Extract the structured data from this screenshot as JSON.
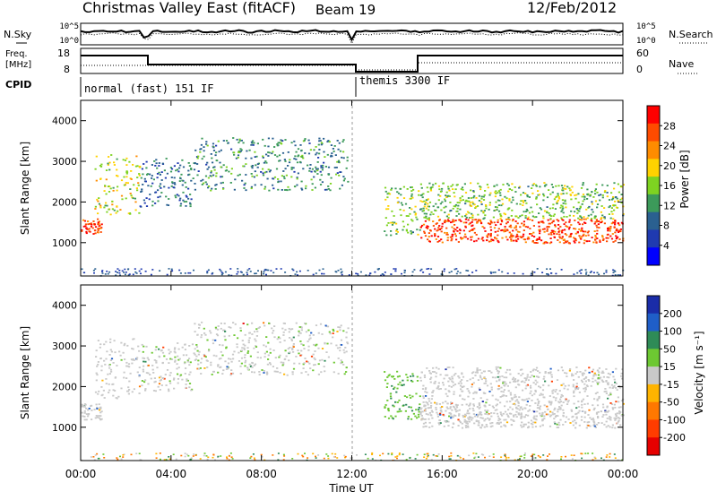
{
  "header": {
    "station": "Christmas Valley East (fitACF)",
    "beam": "Beam 19",
    "date": "12/Feb/2012"
  },
  "top_strips": {
    "left_labels": {
      "nsky": "N.Sky",
      "freq_line1": "Freq.",
      "freq_line2": "[MHz]",
      "cpid": "CPID"
    },
    "right_labels": {
      "nsearch": "N.Search",
      "nave": "Nave"
    },
    "noise_ticks": [
      "10^5",
      "10^0"
    ],
    "noise_right_ticks": [
      "10^5",
      "10^0"
    ],
    "freq_ticks": [
      "18",
      "8"
    ],
    "nave_ticks": [
      "60",
      "0"
    ],
    "cpid_segments": [
      "normal (fast) 151 IF",
      "themis 3300 IF"
    ]
  },
  "panels": {
    "ylabel": "Slant Range [km]",
    "yticks": [
      "4000",
      "3000",
      "2000",
      "1000"
    ],
    "xlabel": "Time UT",
    "xticks": [
      "00:00",
      "04:00",
      "08:00",
      "12:00",
      "16:00",
      "20:00",
      "00:00"
    ]
  },
  "power_scale": {
    "label": "Power [dB]",
    "ticks": [
      "28",
      "24",
      "20",
      "16",
      "12",
      "8",
      "4"
    ],
    "colors": [
      "#ff0000",
      "#ff4b00",
      "#ff8c00",
      "#ffd200",
      "#7ed321",
      "#3c9a5a",
      "#2a6090",
      "#1f3ab0",
      "#0000ff"
    ]
  },
  "velocity_scale": {
    "label": "Velocity [m s⁻¹]",
    "ticks": [
      "200",
      "100",
      "50",
      "15",
      "-15",
      "-50",
      "-100",
      "-200"
    ],
    "colors": [
      "#1a2ca8",
      "#1f5ec8",
      "#2e8b57",
      "#6dc832",
      "#c9c9c9",
      "#ffb400",
      "#ff7800",
      "#ff3c00",
      "#e60000"
    ]
  },
  "chart_data": {
    "type": "heatmap",
    "title": "Christmas Valley East (fitACF) Beam 19 12/Feb/2012",
    "xlabel": "Time UT",
    "ylabel": "Slant Range [km]",
    "x_range_hours": [
      0,
      24
    ],
    "y_range_km": [
      180,
      4500
    ],
    "power_range_db": [
      0,
      30
    ],
    "velocity_range_ms": [
      -250,
      250
    ],
    "scatter_regions": [
      {
        "t_start": 0.0,
        "t_end": 0.9,
        "range_low": 1200,
        "range_high": 1600,
        "power_db": 27,
        "velocity_ms": 0
      },
      {
        "t_start": 0.6,
        "t_end": 2.6,
        "range_low": 1700,
        "range_high": 3200,
        "power_db": 17,
        "velocity_ms": 0
      },
      {
        "t_start": 2.6,
        "t_end": 5.0,
        "range_low": 1900,
        "range_high": 3100,
        "power_db": 8,
        "velocity_ms": 10
      },
      {
        "t_start": 5.0,
        "t_end": 11.8,
        "range_low": 2300,
        "range_high": 3600,
        "power_db": 10,
        "velocity_ms": 10
      },
      {
        "t_start": 13.4,
        "t_end": 15.0,
        "range_low": 1200,
        "range_high": 2400,
        "power_db": 14,
        "velocity_ms": 80
      },
      {
        "t_start": 15.0,
        "t_end": 24.0,
        "range_low": 1000,
        "range_high": 1600,
        "power_db": 27,
        "velocity_ms": 0
      },
      {
        "t_start": 15.0,
        "t_end": 24.0,
        "range_low": 1600,
        "range_high": 2500,
        "power_db": 14,
        "velocity_ms": 0
      }
    ],
    "cpid_changes": [
      {
        "time_hours": 0.0,
        "label": "normal (fast) 151 IF"
      },
      {
        "time_hours": 12.0,
        "label": "themis 3300 IF"
      }
    ]
  }
}
